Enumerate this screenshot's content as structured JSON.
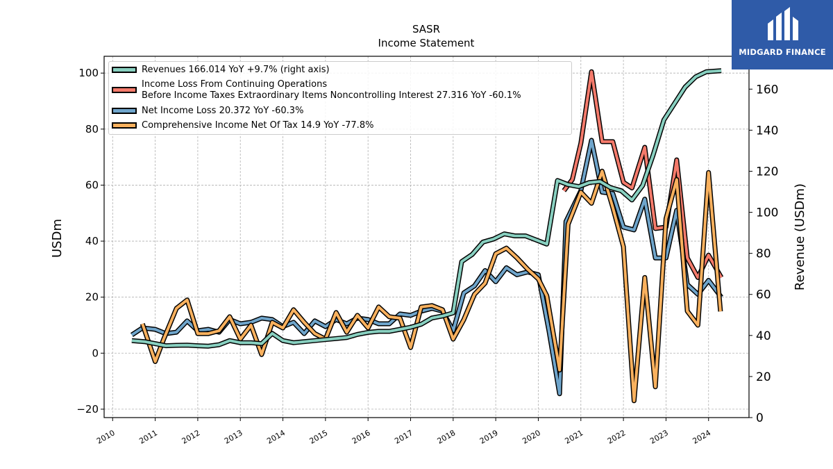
{
  "chart_data": {
    "type": "line",
    "title": "SASR",
    "subtitle": "Income Statement",
    "ylabel": "USDm",
    "y2label": "Revenue (USDm)",
    "ylim": [
      -23,
      106
    ],
    "y2lim": [
      0,
      176
    ],
    "xlim": [
      2009.8,
      2024.95
    ],
    "yticks": [
      "−20",
      "0",
      "20",
      "40",
      "60",
      "80",
      "100"
    ],
    "y2ticks": [
      "0",
      "20",
      "40",
      "60",
      "80",
      "100",
      "120",
      "140",
      "160"
    ],
    "xticks": [
      "2010",
      "2011",
      "2012",
      "2013",
      "2014",
      "2015",
      "2016",
      "2017",
      "2018",
      "2019",
      "2020",
      "2021",
      "2022",
      "2023",
      "2024"
    ],
    "grid": true,
    "legend_position": "top-left",
    "series": [
      {
        "name": "Revenues  166.014 YoY +9.7% (right axis)",
        "axis": "right",
        "color": "#88d0c0",
        "points": [
          [
            2010.45,
            37.5
          ],
          [
            2010.75,
            37
          ],
          [
            2011.0,
            36
          ],
          [
            2011.25,
            35
          ],
          [
            2011.5,
            35.2
          ],
          [
            2011.75,
            35.3
          ],
          [
            2012.0,
            35
          ],
          [
            2012.25,
            34.8
          ],
          [
            2012.5,
            35.5
          ],
          [
            2012.75,
            37.5
          ],
          [
            2013.0,
            36.5
          ],
          [
            2013.25,
            36.5
          ],
          [
            2013.5,
            36
          ],
          [
            2013.75,
            41
          ],
          [
            2014.0,
            37.5
          ],
          [
            2014.25,
            36.5
          ],
          [
            2014.5,
            37
          ],
          [
            2014.75,
            37.5
          ],
          [
            2015.0,
            38
          ],
          [
            2015.25,
            38.5
          ],
          [
            2015.5,
            39
          ],
          [
            2015.75,
            40.5
          ],
          [
            2016.0,
            41.5
          ],
          [
            2016.25,
            42
          ],
          [
            2016.5,
            42
          ],
          [
            2016.75,
            43
          ],
          [
            2017.0,
            44
          ],
          [
            2017.25,
            45.5
          ],
          [
            2017.5,
            48.5
          ],
          [
            2017.75,
            49.5
          ],
          [
            2018.0,
            51
          ],
          [
            2018.2,
            76
          ],
          [
            2018.45,
            79.5
          ],
          [
            2018.7,
            85.5
          ],
          [
            2018.95,
            87
          ],
          [
            2019.2,
            89.5
          ],
          [
            2019.45,
            88.5
          ],
          [
            2019.7,
            88.5
          ],
          [
            2019.95,
            86.5
          ],
          [
            2020.2,
            84.5
          ],
          [
            2020.45,
            115.5
          ],
          [
            2020.7,
            113.5
          ],
          [
            2020.95,
            112.5
          ],
          [
            2021.2,
            114.5
          ],
          [
            2021.45,
            115
          ],
          [
            2021.7,
            112
          ],
          [
            2021.95,
            110.5
          ],
          [
            2022.2,
            106
          ],
          [
            2022.45,
            113
          ],
          [
            2022.7,
            128
          ],
          [
            2022.95,
            145
          ],
          [
            2023.2,
            153
          ],
          [
            2023.45,
            161
          ],
          [
            2023.7,
            166
          ],
          [
            2023.95,
            168.5
          ],
          [
            2024.3,
            169
          ]
        ]
      },
      {
        "name": "Income Loss From Continuing Operations Before Income Taxes Extraordinary Items Noncontrolling Interest  27.316 YoY -60.1%",
        "legend_lines": [
          "Income Loss From Continuing Operations",
          "Before Income Taxes Extraordinary Items Noncontrolling Interest  27.316 YoY -60.1%"
        ],
        "axis": "left",
        "color": "#f47a6b",
        "points": [
          [
            2020.6,
            58
          ],
          [
            2020.8,
            62
          ],
          [
            2021.0,
            75
          ],
          [
            2021.25,
            100.5
          ],
          [
            2021.5,
            75.5
          ],
          [
            2021.75,
            75.5
          ],
          [
            2022.0,
            61
          ],
          [
            2022.2,
            59
          ],
          [
            2022.5,
            73.5
          ],
          [
            2022.75,
            44.5
          ],
          [
            2023.0,
            45
          ],
          [
            2023.25,
            69
          ],
          [
            2023.5,
            34
          ],
          [
            2023.75,
            27
          ],
          [
            2024.0,
            35
          ],
          [
            2024.3,
            27
          ]
        ]
      },
      {
        "name": "Net Income Loss  20.372 YoY -60.3%",
        "axis": "left",
        "color": "#6fa5cb",
        "points": [
          [
            2010.45,
            6.5
          ],
          [
            2010.7,
            9
          ],
          [
            2011.0,
            8.5
          ],
          [
            2011.25,
            7
          ],
          [
            2011.5,
            7.5
          ],
          [
            2011.75,
            11.5
          ],
          [
            2012.0,
            8
          ],
          [
            2012.25,
            8.5
          ],
          [
            2012.5,
            7.5
          ],
          [
            2012.75,
            12
          ],
          [
            2013.0,
            10.5
          ],
          [
            2013.25,
            11
          ],
          [
            2013.5,
            12.5
          ],
          [
            2013.75,
            12
          ],
          [
            2014.0,
            9.5
          ],
          [
            2014.25,
            11
          ],
          [
            2014.5,
            7
          ],
          [
            2014.75,
            11.5
          ],
          [
            2015.0,
            9.5
          ],
          [
            2015.25,
            12
          ],
          [
            2015.5,
            10.5
          ],
          [
            2015.75,
            12.5
          ],
          [
            2016.0,
            12
          ],
          [
            2016.25,
            10.5
          ],
          [
            2016.5,
            10.5
          ],
          [
            2016.75,
            14
          ],
          [
            2017.0,
            13.5
          ],
          [
            2017.25,
            15
          ],
          [
            2017.5,
            16
          ],
          [
            2017.75,
            15
          ],
          [
            2018.0,
            8
          ],
          [
            2018.25,
            21.5
          ],
          [
            2018.5,
            24
          ],
          [
            2018.75,
            29.5
          ],
          [
            2019.0,
            25.5
          ],
          [
            2019.25,
            30.5
          ],
          [
            2019.5,
            28
          ],
          [
            2019.75,
            29
          ],
          [
            2020.0,
            28
          ],
          [
            2020.25,
            8
          ],
          [
            2020.5,
            -14.5
          ],
          [
            2020.65,
            47
          ],
          [
            2021.0,
            58
          ],
          [
            2021.25,
            76
          ],
          [
            2021.5,
            57.5
          ],
          [
            2021.75,
            57
          ],
          [
            2022.0,
            45
          ],
          [
            2022.25,
            44
          ],
          [
            2022.5,
            55
          ],
          [
            2022.75,
            34
          ],
          [
            2023.0,
            34
          ],
          [
            2023.25,
            51
          ],
          [
            2023.5,
            24.5
          ],
          [
            2023.75,
            21
          ],
          [
            2024.0,
            26
          ],
          [
            2024.3,
            20
          ]
        ]
      },
      {
        "name": "Comprehensive Income Net Of Tax  14.9 YoY -77.8%",
        "axis": "left",
        "color": "#f9b15e",
        "points": [
          [
            2010.7,
            10.5
          ],
          [
            2011.0,
            -3
          ],
          [
            2011.2,
            5
          ],
          [
            2011.5,
            16
          ],
          [
            2011.75,
            19
          ],
          [
            2012.0,
            7
          ],
          [
            2012.25,
            7
          ],
          [
            2012.5,
            8
          ],
          [
            2012.75,
            13
          ],
          [
            2013.0,
            5
          ],
          [
            2013.25,
            10
          ],
          [
            2013.5,
            -0.5
          ],
          [
            2013.75,
            11
          ],
          [
            2014.0,
            9
          ],
          [
            2014.25,
            15.5
          ],
          [
            2014.5,
            11
          ],
          [
            2014.75,
            7
          ],
          [
            2015.0,
            5
          ],
          [
            2015.25,
            14.5
          ],
          [
            2015.5,
            7.5
          ],
          [
            2015.75,
            13.5
          ],
          [
            2016.0,
            9
          ],
          [
            2016.25,
            16.5
          ],
          [
            2016.5,
            13
          ],
          [
            2016.75,
            12.5
          ],
          [
            2017.0,
            2
          ],
          [
            2017.25,
            16.5
          ],
          [
            2017.5,
            17
          ],
          [
            2017.75,
            15.5
          ],
          [
            2018.0,
            5
          ],
          [
            2018.25,
            12
          ],
          [
            2018.5,
            21
          ],
          [
            2018.75,
            25
          ],
          [
            2019.0,
            35.5
          ],
          [
            2019.25,
            37.5
          ],
          [
            2019.5,
            34
          ],
          [
            2019.75,
            30
          ],
          [
            2020.0,
            26.5
          ],
          [
            2020.2,
            20.5
          ],
          [
            2020.5,
            -6
          ],
          [
            2020.7,
            46
          ],
          [
            2021.0,
            57.5
          ],
          [
            2021.25,
            53.5
          ],
          [
            2021.5,
            65
          ],
          [
            2021.75,
            52
          ],
          [
            2022.0,
            38
          ],
          [
            2022.25,
            -17
          ],
          [
            2022.5,
            27
          ],
          [
            2022.75,
            -12
          ],
          [
            2023.0,
            48
          ],
          [
            2023.25,
            62
          ],
          [
            2023.5,
            15
          ],
          [
            2023.75,
            10
          ],
          [
            2024.0,
            64.5
          ],
          [
            2024.28,
            14.9
          ]
        ]
      }
    ]
  },
  "watermark": {
    "brand": "MIDGARD FINANCE",
    "color": "#2f5ba8"
  }
}
